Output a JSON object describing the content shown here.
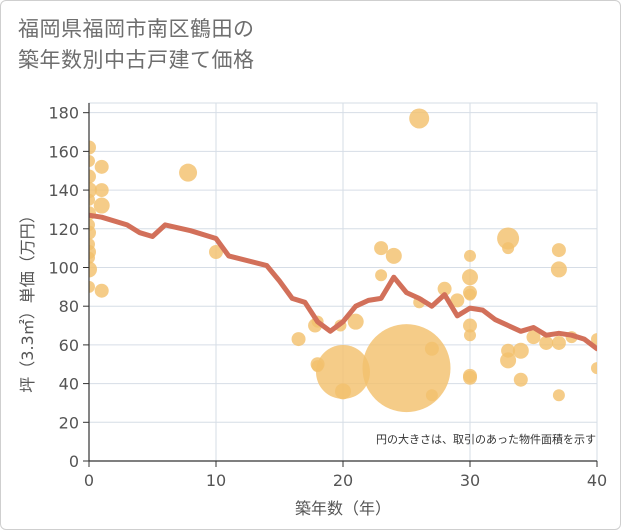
{
  "chart_data": {
    "type": "scatter",
    "title_line1": "福岡県福岡市南区鶴田の",
    "title_line2": "築年数別中古戸建て価格",
    "xlabel": "築年数（年）",
    "ylabel": "坪（3.3㎡）単価（万円）",
    "note": "円の大きさは、取引のあった物件面積を示す",
    "xlim": [
      0,
      40
    ],
    "ylim": [
      0,
      185
    ],
    "xticks": [
      0,
      10,
      20,
      30,
      40
    ],
    "yticks": [
      0,
      20,
      40,
      60,
      80,
      100,
      120,
      140,
      160,
      180
    ],
    "grid": true,
    "colors": {
      "bubble": "#f3c16e",
      "line": "#d2705a",
      "grid": "#d6dde6",
      "axis": "#333333"
    },
    "points": [
      {
        "x": 0,
        "y": 162,
        "r": 7
      },
      {
        "x": 0,
        "y": 155,
        "r": 6
      },
      {
        "x": 0,
        "y": 147,
        "r": 7
      },
      {
        "x": 0,
        "y": 140,
        "r": 8
      },
      {
        "x": 0,
        "y": 135,
        "r": 6
      },
      {
        "x": 0,
        "y": 128,
        "r": 7
      },
      {
        "x": 0,
        "y": 122,
        "r": 6
      },
      {
        "x": 0,
        "y": 118,
        "r": 7
      },
      {
        "x": 0,
        "y": 112,
        "r": 6
      },
      {
        "x": 0,
        "y": 108,
        "r": 7
      },
      {
        "x": 0,
        "y": 105,
        "r": 6
      },
      {
        "x": 0,
        "y": 99,
        "r": 8
      },
      {
        "x": 0,
        "y": 90,
        "r": 6
      },
      {
        "x": 1,
        "y": 152,
        "r": 7
      },
      {
        "x": 1,
        "y": 140,
        "r": 7
      },
      {
        "x": 1,
        "y": 132,
        "r": 8
      },
      {
        "x": 1,
        "y": 88,
        "r": 7
      },
      {
        "x": 7.8,
        "y": 149,
        "r": 9
      },
      {
        "x": 10,
        "y": 108,
        "r": 7
      },
      {
        "x": 16.5,
        "y": 63,
        "r": 7
      },
      {
        "x": 17.8,
        "y": 70,
        "r": 7
      },
      {
        "x": 18,
        "y": 72,
        "r": 6
      },
      {
        "x": 18,
        "y": 50,
        "r": 7
      },
      {
        "x": 18,
        "y": 49,
        "r": 6
      },
      {
        "x": 19.8,
        "y": 70,
        "r": 6
      },
      {
        "x": 20,
        "y": 46,
        "r": 27
      },
      {
        "x": 20,
        "y": 36,
        "r": 8
      },
      {
        "x": 21,
        "y": 72,
        "r": 8
      },
      {
        "x": 23,
        "y": 110,
        "r": 7
      },
      {
        "x": 23,
        "y": 96,
        "r": 6
      },
      {
        "x": 24,
        "y": 106,
        "r": 8
      },
      {
        "x": 25,
        "y": 48,
        "r": 44
      },
      {
        "x": 26,
        "y": 177,
        "r": 10
      },
      {
        "x": 26,
        "y": 82,
        "r": 6
      },
      {
        "x": 27,
        "y": 58,
        "r": 7
      },
      {
        "x": 27,
        "y": 34,
        "r": 6
      },
      {
        "x": 28,
        "y": 89,
        "r": 7
      },
      {
        "x": 29,
        "y": 83,
        "r": 7
      },
      {
        "x": 30,
        "y": 106,
        "r": 6
      },
      {
        "x": 30,
        "y": 95,
        "r": 8
      },
      {
        "x": 30,
        "y": 87,
        "r": 7
      },
      {
        "x": 30,
        "y": 86,
        "r": 6
      },
      {
        "x": 30,
        "y": 70,
        "r": 7
      },
      {
        "x": 30,
        "y": 65,
        "r": 6
      },
      {
        "x": 30,
        "y": 44,
        "r": 7
      },
      {
        "x": 30,
        "y": 43,
        "r": 7
      },
      {
        "x": 33,
        "y": 115,
        "r": 11
      },
      {
        "x": 33,
        "y": 110,
        "r": 6
      },
      {
        "x": 33,
        "y": 57,
        "r": 7
      },
      {
        "x": 33,
        "y": 52,
        "r": 8
      },
      {
        "x": 34,
        "y": 57,
        "r": 8
      },
      {
        "x": 34,
        "y": 42,
        "r": 7
      },
      {
        "x": 35,
        "y": 64,
        "r": 7
      },
      {
        "x": 36,
        "y": 61,
        "r": 7
      },
      {
        "x": 37,
        "y": 109,
        "r": 7
      },
      {
        "x": 37,
        "y": 99,
        "r": 8
      },
      {
        "x": 37,
        "y": 61,
        "r": 7
      },
      {
        "x": 37,
        "y": 34,
        "r": 6
      },
      {
        "x": 38,
        "y": 64,
        "r": 6
      },
      {
        "x": 40,
        "y": 63,
        "r": 6
      },
      {
        "x": 40,
        "y": 48,
        "r": 6
      }
    ],
    "trend": [
      {
        "x": 0,
        "y": 127
      },
      {
        "x": 1,
        "y": 126
      },
      {
        "x": 3,
        "y": 122
      },
      {
        "x": 4,
        "y": 118
      },
      {
        "x": 5,
        "y": 116
      },
      {
        "x": 6,
        "y": 122
      },
      {
        "x": 8,
        "y": 119
      },
      {
        "x": 10,
        "y": 115
      },
      {
        "x": 11,
        "y": 106
      },
      {
        "x": 14,
        "y": 101
      },
      {
        "x": 15,
        "y": 93
      },
      {
        "x": 16,
        "y": 84
      },
      {
        "x": 17,
        "y": 82
      },
      {
        "x": 18,
        "y": 72
      },
      {
        "x": 19,
        "y": 67
      },
      {
        "x": 20,
        "y": 72
      },
      {
        "x": 21,
        "y": 80
      },
      {
        "x": 22,
        "y": 83
      },
      {
        "x": 23,
        "y": 84
      },
      {
        "x": 24,
        "y": 95
      },
      {
        "x": 25,
        "y": 87
      },
      {
        "x": 26,
        "y": 84
      },
      {
        "x": 27,
        "y": 80
      },
      {
        "x": 28,
        "y": 86
      },
      {
        "x": 29,
        "y": 75
      },
      {
        "x": 30,
        "y": 79
      },
      {
        "x": 31,
        "y": 78
      },
      {
        "x": 32,
        "y": 73
      },
      {
        "x": 33,
        "y": 70
      },
      {
        "x": 34,
        "y": 67
      },
      {
        "x": 35,
        "y": 69
      },
      {
        "x": 36,
        "y": 65
      },
      {
        "x": 37,
        "y": 66
      },
      {
        "x": 38,
        "y": 65
      },
      {
        "x": 39,
        "y": 63
      },
      {
        "x": 40,
        "y": 58
      }
    ]
  }
}
